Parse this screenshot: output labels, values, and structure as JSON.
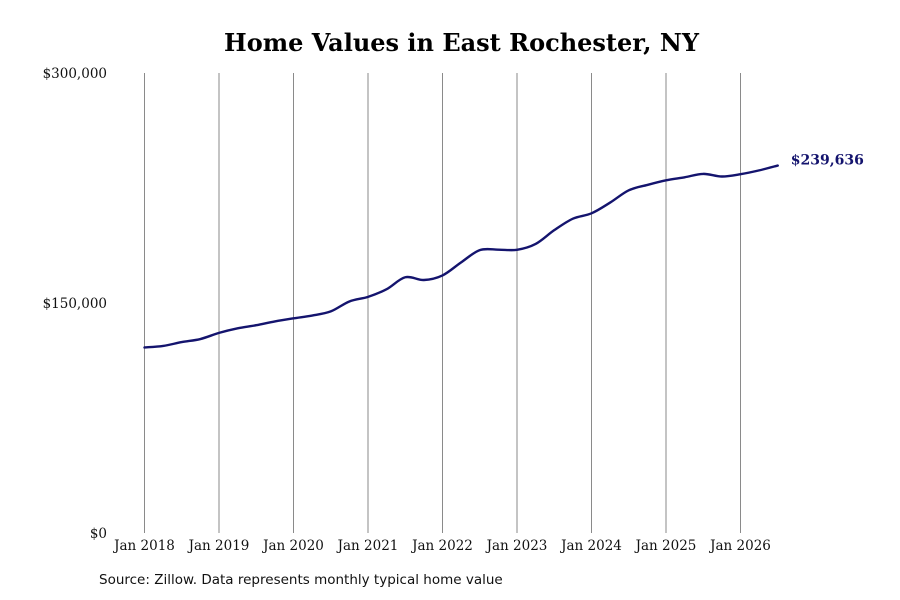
{
  "chart_data": {
    "type": "line",
    "title": "Home Values in East Rochester, NY",
    "source": "Source: Zillow. Data represents monthly typical home value",
    "xlabel": "",
    "ylabel": "",
    "ylim": [
      0,
      300000
    ],
    "y_ticks": [
      {
        "value": 0,
        "label": "$0"
      },
      {
        "value": 150000,
        "label": "$150,000"
      },
      {
        "value": 300000,
        "label": "$300,000"
      }
    ],
    "x_ticks": [
      {
        "date": "2018-01",
        "label": "Jan 2018"
      },
      {
        "date": "2019-01",
        "label": "Jan 2019"
      },
      {
        "date": "2020-01",
        "label": "Jan 2020"
      },
      {
        "date": "2021-01",
        "label": "Jan 2021"
      },
      {
        "date": "2022-01",
        "label": "Jan 2022"
      },
      {
        "date": "2023-01",
        "label": "Jan 2023"
      },
      {
        "date": "2024-01",
        "label": "Jan 2024"
      },
      {
        "date": "2025-01",
        "label": "Jan 2025"
      },
      {
        "date": "2026-01",
        "label": "Jan 2026"
      }
    ],
    "grid": {
      "vertical": true,
      "horizontal": false
    },
    "legend": "none",
    "line_color": "#14146e",
    "series": [
      {
        "end_label": "$239,636",
        "points": [
          {
            "x": "2018-01",
            "y": 121000
          },
          {
            "x": "2018-04",
            "y": 122000
          },
          {
            "x": "2018-07",
            "y": 124500
          },
          {
            "x": "2018-10",
            "y": 126500
          },
          {
            "x": "2019-01",
            "y": 130500
          },
          {
            "x": "2019-04",
            "y": 133500
          },
          {
            "x": "2019-07",
            "y": 135500
          },
          {
            "x": "2019-10",
            "y": 138000
          },
          {
            "x": "2020-01",
            "y": 140000
          },
          {
            "x": "2020-04",
            "y": 141800
          },
          {
            "x": "2020-07",
            "y": 144500
          },
          {
            "x": "2020-10",
            "y": 151000
          },
          {
            "x": "2021-01",
            "y": 154000
          },
          {
            "x": "2021-04",
            "y": 159000
          },
          {
            "x": "2021-07",
            "y": 166800
          },
          {
            "x": "2021-10",
            "y": 165000
          },
          {
            "x": "2022-01",
            "y": 168000
          },
          {
            "x": "2022-04",
            "y": 176500
          },
          {
            "x": "2022-07",
            "y": 184500
          },
          {
            "x": "2022-10",
            "y": 184800
          },
          {
            "x": "2023-01",
            "y": 184700
          },
          {
            "x": "2023-04",
            "y": 188500
          },
          {
            "x": "2023-07",
            "y": 197500
          },
          {
            "x": "2023-10",
            "y": 205000
          },
          {
            "x": "2024-01",
            "y": 208500
          },
          {
            "x": "2024-04",
            "y": 215500
          },
          {
            "x": "2024-07",
            "y": 223500
          },
          {
            "x": "2024-10",
            "y": 227000
          },
          {
            "x": "2025-01",
            "y": 230000
          },
          {
            "x": "2025-04",
            "y": 232000
          },
          {
            "x": "2025-07",
            "y": 234200
          },
          {
            "x": "2025-10",
            "y": 232500
          },
          {
            "x": "2026-01",
            "y": 234000
          },
          {
            "x": "2026-04",
            "y": 236500
          },
          {
            "x": "2026-07",
            "y": 239636
          }
        ]
      }
    ]
  }
}
